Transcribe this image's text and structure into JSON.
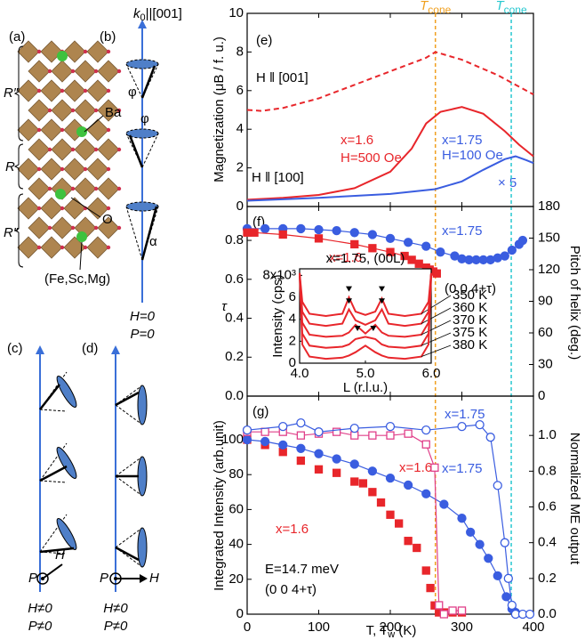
{
  "chart_data": [
    {
      "type": "line",
      "panel_label": "(e)",
      "ylabel": "Magnetization (μB / f. u.)",
      "xlim": [
        0,
        400
      ],
      "xticks": [
        0,
        100,
        200,
        300,
        400
      ],
      "xtick_labels": false,
      "ylim": [
        0,
        10
      ],
      "yticks": [
        0,
        2,
        4,
        6,
        8,
        10
      ],
      "vlines": [
        {
          "value": 263,
          "color": "#f0a020",
          "label": "T",
          "sub": "cone"
        },
        {
          "value": 369,
          "color": "#28c8d0",
          "label": "T",
          "sub": "cone"
        }
      ],
      "annotations": [
        "H ‖ [100]",
        "× 5"
      ],
      "series": [
        {
          "name": "H ‖ [001]",
          "color": "#e8262b",
          "dash": true,
          "x": [
            0,
            20,
            50,
            100,
            150,
            200,
            250,
            263,
            300,
            350,
            400
          ],
          "values": [
            5.0,
            4.95,
            5.1,
            5.6,
            6.3,
            7.0,
            7.7,
            8.0,
            7.6,
            6.8,
            5.8
          ]
        },
        {
          "name": "x=1.6",
          "condition": "H=500 Oe",
          "color": "#e8262b",
          "x": [
            0,
            50,
            100,
            150,
            200,
            230,
            250,
            270,
            300,
            330,
            360,
            380,
            400
          ],
          "values": [
            0.35,
            0.45,
            0.6,
            0.95,
            1.8,
            3.0,
            4.3,
            4.9,
            5.15,
            4.8,
            3.9,
            3.2,
            2.6
          ]
        },
        {
          "name": "x=1.75",
          "condition": "H=100 Oe",
          "color": "#3a5de0",
          "x": [
            0,
            100,
            200,
            263,
            300,
            330,
            360,
            375,
            390,
            400
          ],
          "values": [
            0.3,
            0.45,
            0.65,
            0.9,
            1.3,
            1.9,
            2.45,
            2.6,
            2.4,
            2.25
          ]
        }
      ]
    },
    {
      "type": "line",
      "panel_label": "(f)",
      "ylabel": "τ",
      "y2label": "Pitch of helix (deg.)",
      "xlim": [
        0,
        400
      ],
      "xticks": [
        0,
        100,
        200,
        300,
        400
      ],
      "xtick_labels": false,
      "ylim": [
        0,
        0.974
      ],
      "yticks": [
        {
          "value": 0,
          "label": "0.0"
        },
        0.2,
        0.4,
        0.6,
        0.8
      ],
      "y2lim": [
        0,
        180
      ],
      "y2ticks": [
        0,
        30,
        60,
        90,
        120,
        150,
        180
      ],
      "annotations": [
        "(0 0 4+τ)"
      ],
      "series": [
        {
          "name": "x=1.75",
          "color": "#3a5de0",
          "marker": "circle",
          "filled": true,
          "x": [
            0,
            25,
            50,
            75,
            100,
            125,
            150,
            175,
            200,
            225,
            250,
            270,
            290,
            300,
            310,
            320,
            330,
            340,
            350,
            360,
            370,
            380,
            385
          ],
          "values": [
            0.86,
            0.86,
            0.86,
            0.86,
            0.855,
            0.85,
            0.84,
            0.83,
            0.81,
            0.79,
            0.77,
            0.74,
            0.72,
            0.705,
            0.7,
            0.7,
            0.7,
            0.7,
            0.71,
            0.72,
            0.75,
            0.78,
            0.8
          ]
        },
        {
          "name": "x=1.6",
          "color": "#e8262b",
          "marker": "square",
          "filled": true,
          "x": [
            0,
            10,
            50,
            100,
            150,
            175,
            200,
            220,
            230,
            240,
            250,
            255,
            260,
            265
          ],
          "values": [
            0.84,
            0.84,
            0.83,
            0.81,
            0.78,
            0.76,
            0.74,
            0.72,
            0.7,
            0.68,
            0.66,
            0.65,
            0.64,
            0.63
          ]
        }
      ]
    },
    {
      "type": "line",
      "title": "x=1.75, (00L)",
      "xlabel": "L (r.l.u.)",
      "ylabel": "Intensity (cps)",
      "xlim": [
        4,
        6
      ],
      "xticks": [
        {
          "value": 4,
          "label": "4.0"
        },
        {
          "value": 5,
          "label": "5.0"
        },
        {
          "value": 6,
          "label": "6.0"
        }
      ],
      "xtick_labels": true,
      "ylim": [
        0,
        8.6
      ],
      "yticks": [
        0,
        2,
        4,
        6,
        {
          "value": 8,
          "label": "8x10³"
        }
      ],
      "x": [
        4.0,
        4.04,
        4.15,
        4.4,
        4.65,
        4.75,
        4.85,
        5.0,
        5.15,
        5.25,
        5.35,
        5.6,
        5.85,
        5.96,
        6.0
      ],
      "series": [
        {
          "name": "350 K",
          "color": "#e8262b",
          "values": [
            8.2,
            5.6,
            4.5,
            4.3,
            4.5,
            6.0,
            4.7,
            4.4,
            4.7,
            5.9,
            4.5,
            4.3,
            4.5,
            5.6,
            8.2
          ]
        },
        {
          "name": "360 K",
          "color": "#e8262b",
          "values": [
            8.2,
            4.7,
            3.6,
            3.4,
            3.6,
            4.9,
            3.9,
            3.5,
            3.9,
            4.9,
            3.6,
            3.4,
            3.6,
            4.7,
            8.2
          ]
        },
        {
          "name": "370 K",
          "color": "#e8262b",
          "values": [
            8.2,
            3.7,
            2.6,
            2.4,
            2.5,
            2.8,
            3.5,
            2.7,
            3.5,
            2.8,
            2.5,
            2.4,
            2.6,
            3.7,
            8.2
          ]
        },
        {
          "name": "375 K",
          "color": "#e8262b",
          "values": [
            8.2,
            2.7,
            1.6,
            1.4,
            1.5,
            1.7,
            2.2,
            2.4,
            2.2,
            1.7,
            1.5,
            1.4,
            1.6,
            2.7,
            8.2
          ]
        },
        {
          "name": "380 K",
          "color": "#e8262b",
          "values": [
            8.2,
            1.7,
            0.6,
            0.4,
            0.5,
            0.7,
            1.0,
            1.6,
            1.0,
            0.7,
            0.5,
            0.4,
            0.6,
            1.7,
            8.2
          ]
        }
      ]
    },
    {
      "type": "line",
      "panel_label": "(g)",
      "xlabel": [
        "T, T",
        "w",
        " (K)"
      ],
      "ylabel": "Integrated Intensity (arb.unit)",
      "y2label": "Normalized ME output",
      "xlim": [
        0,
        400
      ],
      "xticks": [
        0,
        100,
        200,
        300,
        400
      ],
      "xtick_labels": true,
      "ylim": [
        0,
        125
      ],
      "yticks": [
        0,
        20,
        40,
        60,
        80,
        100
      ],
      "y2lim": [
        0,
        1.22
      ],
      "y2ticks": [
        {
          "value": 0,
          "label": "0.0"
        },
        0.2,
        0.4,
        0.6,
        0.8,
        {
          "value": 1,
          "label": "1.0"
        }
      ],
      "annotations": [
        "E=14.7 meV",
        "(0 0 4+τ)"
      ],
      "series": [
        {
          "name": "x=1.6",
          "color": "#e8262b",
          "marker": "square",
          "filled": true,
          "line": false,
          "x": [
            0,
            25,
            50,
            75,
            100,
            125,
            150,
            162,
            175,
            187,
            200,
            212,
            225,
            237,
            250,
            256,
            262,
            268,
            275,
            287,
            300
          ],
          "values": [
            100,
            97,
            93,
            88,
            83,
            81,
            76,
            75,
            70,
            64,
            57,
            52,
            42,
            38,
            25,
            15,
            5,
            1,
            1,
            1,
            1
          ]
        },
        {
          "name": "x=1.75",
          "color": "#3a5de0",
          "marker": "circle",
          "filled": true,
          "x": [
            0,
            25,
            50,
            75,
            100,
            125,
            150,
            175,
            200,
            225,
            250,
            275,
            300,
            312,
            325,
            337,
            350,
            362,
            370,
            375
          ],
          "values": [
            100,
            99,
            97,
            95,
            92,
            89,
            86,
            82,
            78,
            74,
            69,
            63,
            55,
            47,
            40,
            32,
            22,
            10,
            3,
            1
          ]
        },
        {
          "name": "x=1.6",
          "color": "#e0408a",
          "marker": "square",
          "filled": false,
          "axis": "y2",
          "x": [
            0,
            25,
            50,
            75,
            100,
            125,
            150,
            175,
            200,
            225,
            250,
            262,
            268,
            275,
            287,
            300
          ],
          "values": [
            1.02,
            1.02,
            1.02,
            1.0,
            1.01,
            1.02,
            1.0,
            1.0,
            1.0,
            1.01,
            0.95,
            0.82,
            0.05,
            0.0,
            0.02,
            0.02
          ]
        },
        {
          "name": "x=1.75",
          "color": "#3a5de0",
          "marker": "circle",
          "filled": false,
          "axis": "y2",
          "x": [
            0,
            50,
            75,
            100,
            150,
            200,
            250,
            300,
            325,
            340,
            350,
            360,
            365,
            370,
            375,
            385,
            395
          ],
          "values": [
            1.03,
            1.05,
            1.07,
            1.02,
            1.04,
            1.05,
            1.03,
            1.05,
            1.06,
            0.99,
            0.72,
            0.4,
            0.2,
            0.05,
            0.0,
            0.0,
            0.0
          ]
        }
      ]
    }
  ],
  "diagram": {
    "panel_labels": [
      "(a)",
      "(b)",
      "(c)",
      "(d)"
    ],
    "k_vector": "k",
    "k_sub": "0",
    "k_dir": "||[001]",
    "blocks": [
      "R″",
      "R",
      "R″"
    ],
    "atoms": [
      "Ba",
      "O",
      "(Fe,Sc,Mg)"
    ],
    "angles": [
      "φ",
      "φ",
      "α"
    ],
    "b_conditions": [
      "H=0",
      "P=0"
    ],
    "c_fields": [
      "P",
      "H"
    ],
    "c_conditions": [
      "H≠0",
      "P≠0"
    ],
    "d_fields": [
      "P",
      "H"
    ],
    "d_conditions": [
      "H≠0",
      "P≠0"
    ]
  }
}
